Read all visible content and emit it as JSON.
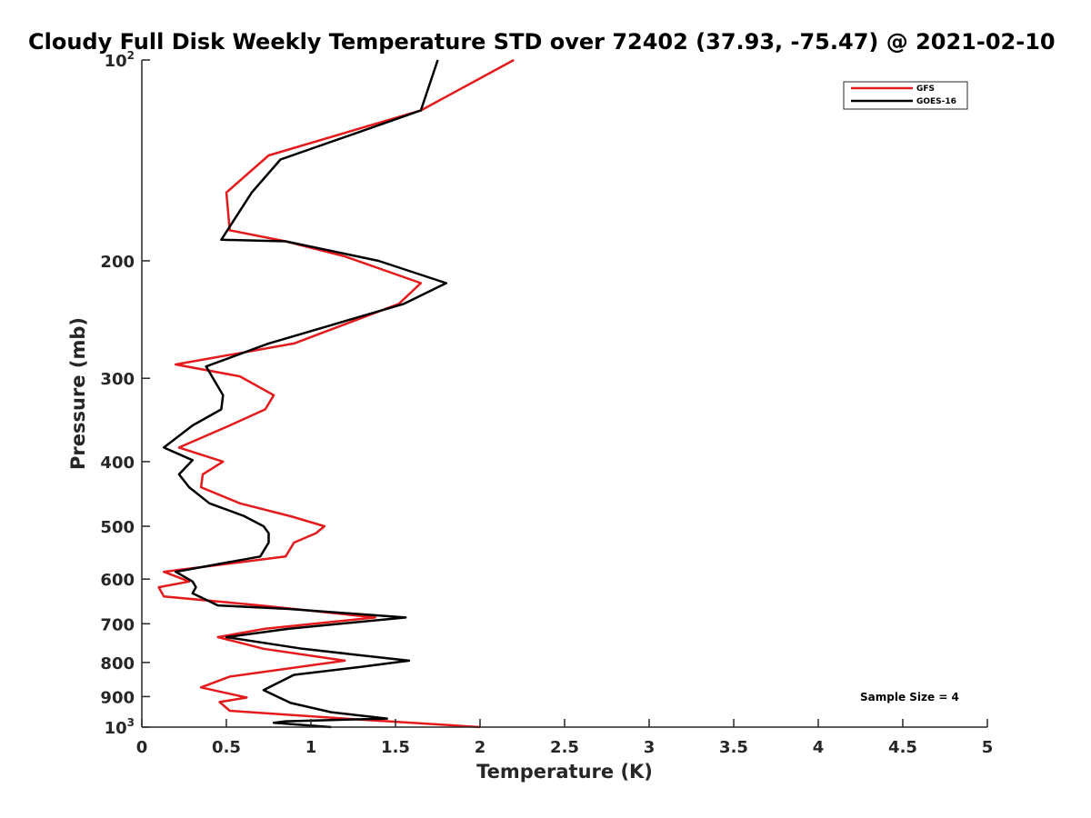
{
  "chart_data": {
    "type": "line",
    "title": "Cloudy Full Disk Weekly Temperature STD over 72402 (37.93, -75.47) @ 2021-02-10",
    "xlabel": "Temperature (K)",
    "ylabel": "Pressure (mb)",
    "xlim": [
      0,
      5
    ],
    "ylim": [
      100,
      1000
    ],
    "yscale": "log",
    "y_reversed": true,
    "grid": false,
    "legend_position": "top-right",
    "x_ticks": [
      "0",
      "0.5",
      "1",
      "1.5",
      "2",
      "2.5",
      "3",
      "3.5",
      "4",
      "4.5",
      "5"
    ],
    "x_tick_values": [
      0,
      0.5,
      1,
      1.5,
      2,
      2.5,
      3,
      3.5,
      4,
      4.5,
      5
    ],
    "y_ticks": [
      {
        "value": 100,
        "base": "10",
        "exp": "2"
      },
      {
        "value": 200,
        "label": "200"
      },
      {
        "value": 300,
        "label": "300"
      },
      {
        "value": 400,
        "label": "400"
      },
      {
        "value": 500,
        "label": "500"
      },
      {
        "value": 600,
        "label": "600"
      },
      {
        "value": 700,
        "label": "700"
      },
      {
        "value": 800,
        "label": "800"
      },
      {
        "value": 900,
        "label": "900"
      },
      {
        "value": 1000,
        "base": "10",
        "exp": "3"
      }
    ],
    "annotation": "Sample Size = 4",
    "series": [
      {
        "name": "GFS",
        "color": "#e41a1c",
        "points": [
          [
            2.2,
            100
          ],
          [
            1.65,
            119
          ],
          [
            0.75,
            139
          ],
          [
            0.5,
            158
          ],
          [
            0.52,
            180
          ],
          [
            0.85,
            187
          ],
          [
            1.2,
            197
          ],
          [
            1.65,
            216
          ],
          [
            1.52,
            232
          ],
          [
            0.9,
            266
          ],
          [
            0.2,
            286
          ],
          [
            0.58,
            298
          ],
          [
            0.78,
            318
          ],
          [
            0.73,
            334
          ],
          [
            0.52,
            353
          ],
          [
            0.22,
            381
          ],
          [
            0.48,
            400
          ],
          [
            0.36,
            418
          ],
          [
            0.35,
            437
          ],
          [
            0.58,
            462
          ],
          [
            0.88,
            483
          ],
          [
            1.08,
            500
          ],
          [
            1.03,
            512
          ],
          [
            0.9,
            529
          ],
          [
            0.85,
            555
          ],
          [
            0.13,
            585
          ],
          [
            0.28,
            605
          ],
          [
            0.1,
            617
          ],
          [
            0.13,
            637
          ],
          [
            0.7,
            657
          ],
          [
            1.38,
            685
          ],
          [
            0.73,
            712
          ],
          [
            0.45,
            733
          ],
          [
            0.72,
            763
          ],
          [
            1.2,
            795
          ],
          [
            0.52,
            840
          ],
          [
            0.35,
            872
          ],
          [
            0.62,
            903
          ],
          [
            0.46,
            917
          ],
          [
            0.52,
            945
          ],
          [
            1.2,
            971
          ],
          [
            2.0,
            1000
          ]
        ]
      },
      {
        "name": "GOES-16",
        "color": "#000000",
        "points": [
          [
            1.75,
            100
          ],
          [
            1.65,
            119
          ],
          [
            0.82,
            141
          ],
          [
            0.65,
            158
          ],
          [
            0.47,
            186
          ],
          [
            0.85,
            187
          ],
          [
            1.4,
            200
          ],
          [
            1.8,
            216
          ],
          [
            1.55,
            232
          ],
          [
            0.75,
            266
          ],
          [
            0.38,
            288
          ],
          [
            0.48,
            318
          ],
          [
            0.47,
            334
          ],
          [
            0.3,
            353
          ],
          [
            0.13,
            381
          ],
          [
            0.3,
            398
          ],
          [
            0.22,
            418
          ],
          [
            0.28,
            437
          ],
          [
            0.4,
            462
          ],
          [
            0.6,
            482
          ],
          [
            0.72,
            500
          ],
          [
            0.75,
            512
          ],
          [
            0.75,
            529
          ],
          [
            0.7,
            555
          ],
          [
            0.2,
            585
          ],
          [
            0.3,
            605
          ],
          [
            0.32,
            617
          ],
          [
            0.3,
            630
          ],
          [
            0.45,
            657
          ],
          [
            0.87,
            665
          ],
          [
            1.56,
            685
          ],
          [
            0.87,
            712
          ],
          [
            0.5,
            733
          ],
          [
            0.95,
            763
          ],
          [
            1.58,
            795
          ],
          [
            1.3,
            812
          ],
          [
            0.9,
            835
          ],
          [
            0.72,
            880
          ],
          [
            0.8,
            900
          ],
          [
            0.88,
            920
          ],
          [
            1.12,
            950
          ],
          [
            1.45,
            971
          ],
          [
            0.85,
            980
          ],
          [
            0.78,
            985
          ],
          [
            1.12,
            1000
          ]
        ]
      }
    ]
  }
}
